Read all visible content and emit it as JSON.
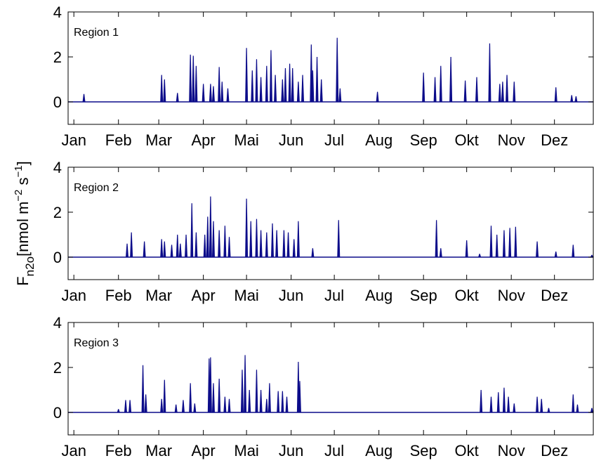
{
  "chart_data": [
    {
      "type": "stem",
      "annotation": "Region 1",
      "color": "#0c0c8a",
      "xlim": [
        -3,
        362
      ],
      "ylim": [
        -1,
        4
      ],
      "yticks": [
        0,
        2,
        4
      ],
      "xticks": [
        {
          "value": 1,
          "label": "Jan"
        },
        {
          "value": 32,
          "label": "Feb"
        },
        {
          "value": 60,
          "label": "Mar"
        },
        {
          "value": 91,
          "label": "Apr"
        },
        {
          "value": 121,
          "label": "Mai"
        },
        {
          "value": 152,
          "label": "Jun"
        },
        {
          "value": 182,
          "label": "Jul"
        },
        {
          "value": 213,
          "label": "Aug"
        },
        {
          "value": 244,
          "label": "Sep"
        },
        {
          "value": 274,
          "label": "Okt"
        },
        {
          "value": 305,
          "label": "Nov"
        },
        {
          "value": 335,
          "label": "Dez"
        }
      ],
      "x": [
        8,
        62,
        64,
        73,
        82,
        84,
        86,
        91,
        96,
        98,
        102,
        104,
        108,
        121,
        125,
        128,
        131,
        135,
        138,
        141,
        146,
        148,
        151,
        153,
        157,
        160,
        166,
        167,
        170,
        173,
        184,
        186,
        212,
        244,
        252,
        256,
        263,
        273,
        281,
        290,
        297,
        299,
        302,
        307,
        336,
        347,
        350
      ],
      "values": [
        0.35,
        1.2,
        1.0,
        0.4,
        2.1,
        2.05,
        1.6,
        0.8,
        0.8,
        0.7,
        1.55,
        0.9,
        0.6,
        2.4,
        1.4,
        1.9,
        1.1,
        1.6,
        2.3,
        1.2,
        1.0,
        1.5,
        1.7,
        1.5,
        0.9,
        1.2,
        2.55,
        1.4,
        2.0,
        1.0,
        2.85,
        0.6,
        0.45,
        1.3,
        1.1,
        1.6,
        2.0,
        0.95,
        1.1,
        2.6,
        0.8,
        0.9,
        1.2,
        0.9,
        0.65,
        0.3,
        0.25
      ]
    },
    {
      "type": "stem",
      "annotation": "Region 2",
      "color": "#0c0c8a",
      "ylabel": [
        "F",
        "n2o",
        "[nmol m",
        "−2",
        " s",
        "−1",
        "]"
      ],
      "xlim": [
        -3,
        362
      ],
      "ylim": [
        -1,
        4
      ],
      "yticks": [
        0,
        2,
        4
      ],
      "xticks": [
        {
          "value": 1,
          "label": "Jan"
        },
        {
          "value": 32,
          "label": "Feb"
        },
        {
          "value": 60,
          "label": "Mar"
        },
        {
          "value": 91,
          "label": "Apr"
        },
        {
          "value": 121,
          "label": "Mai"
        },
        {
          "value": 152,
          "label": "Jun"
        },
        {
          "value": 182,
          "label": "Jul"
        },
        {
          "value": 213,
          "label": "Aug"
        },
        {
          "value": 244,
          "label": "Sep"
        },
        {
          "value": 274,
          "label": "Okt"
        },
        {
          "value": 305,
          "label": "Nov"
        },
        {
          "value": 335,
          "label": "Dez"
        }
      ],
      "x": [
        38,
        41,
        50,
        62,
        64,
        69,
        73,
        75,
        79,
        83,
        86,
        92,
        94,
        96,
        98,
        102,
        106,
        109,
        121,
        124,
        128,
        131,
        135,
        139,
        142,
        147,
        150,
        154,
        157,
        167,
        185,
        253,
        256,
        274,
        283,
        291,
        295,
        300,
        304,
        308,
        323,
        336,
        348,
        361
      ],
      "values": [
        0.6,
        1.1,
        0.7,
        0.8,
        0.7,
        0.55,
        1.0,
        0.6,
        1.0,
        2.4,
        1.1,
        1.0,
        1.8,
        2.7,
        1.6,
        1.2,
        1.4,
        0.9,
        2.6,
        1.6,
        1.7,
        1.2,
        1.1,
        1.5,
        1.2,
        1.2,
        1.1,
        0.8,
        1.6,
        0.4,
        1.65,
        1.65,
        0.4,
        0.75,
        0.15,
        1.4,
        1.0,
        1.2,
        1.3,
        1.35,
        0.7,
        0.25,
        0.55,
        0.1
      ]
    },
    {
      "type": "stem",
      "annotation": "Region 3",
      "color": "#0c0c8a",
      "xlim": [
        -3,
        362
      ],
      "ylim": [
        -1,
        4
      ],
      "yticks": [
        0,
        2,
        4
      ],
      "xticks": [
        {
          "value": 1,
          "label": "Jan"
        },
        {
          "value": 32,
          "label": "Feb"
        },
        {
          "value": 60,
          "label": "Mar"
        },
        {
          "value": 91,
          "label": "Apr"
        },
        {
          "value": 121,
          "label": "Mai"
        },
        {
          "value": 152,
          "label": "Jun"
        },
        {
          "value": 182,
          "label": "Jul"
        },
        {
          "value": 213,
          "label": "Aug"
        },
        {
          "value": 244,
          "label": "Sep"
        },
        {
          "value": 274,
          "label": "Okt"
        },
        {
          "value": 305,
          "label": "Nov"
        },
        {
          "value": 335,
          "label": "Dez"
        }
      ],
      "x": [
        32,
        37,
        40,
        49,
        51,
        62,
        64,
        72,
        77,
        82,
        85,
        95,
        96,
        98,
        102,
        106,
        109,
        118,
        120,
        123,
        128,
        131,
        135,
        137,
        143,
        146,
        149,
        157,
        158,
        284,
        291,
        296,
        300,
        303,
        307,
        323,
        326,
        331,
        348,
        351,
        361
      ],
      "values": [
        0.15,
        0.55,
        0.55,
        2.1,
        0.8,
        0.6,
        1.45,
        0.35,
        0.55,
        1.3,
        0.4,
        2.4,
        2.45,
        1.3,
        1.5,
        0.7,
        0.6,
        1.9,
        2.55,
        1.0,
        1.9,
        1.0,
        0.6,
        1.3,
        0.95,
        0.95,
        0.7,
        2.25,
        1.4,
        1.0,
        0.7,
        0.9,
        1.1,
        0.7,
        0.4,
        0.7,
        0.6,
        0.2,
        0.8,
        0.35,
        0.2
      ]
    }
  ]
}
